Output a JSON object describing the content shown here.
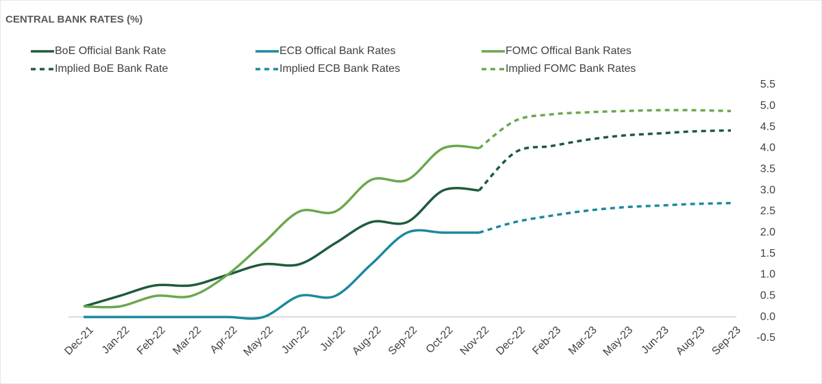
{
  "chart_data": {
    "type": "line",
    "title": "CENTRAL BANK RATES (%)",
    "categories": [
      "Dec-21",
      "Jan-22",
      "Feb-22",
      "Mar-22",
      "Apr-22",
      "May-22",
      "Jun-22",
      "Jul-22",
      "Aug-22",
      "Sep-22",
      "Oct-22",
      "Nov-22",
      "Dec-22",
      "Feb-23",
      "Mar-23",
      "May-23",
      "Jun-23",
      "Aug-23",
      "Sep-23"
    ],
    "series": [
      {
        "name": "BoE Official Bank Rate",
        "color": "#1e5a3c",
        "dashed": false,
        "values": [
          0.25,
          0.5,
          0.75,
          0.75,
          1.0,
          1.25,
          1.25,
          1.75,
          2.25,
          2.25,
          3.0,
          3.0,
          null,
          null,
          null,
          null,
          null,
          null,
          null
        ]
      },
      {
        "name": "ECB Offical Bank Rates",
        "color": "#1a8a9e",
        "dashed": false,
        "values": [
          0,
          0,
          0,
          0,
          0,
          0,
          0.5,
          0.5,
          1.25,
          2.0,
          2.0,
          2.0,
          null,
          null,
          null,
          null,
          null,
          null,
          null
        ]
      },
      {
        "name": "FOMC Offical Bank Rates",
        "color": "#6aa84f",
        "dashed": false,
        "values": [
          0.25,
          0.25,
          0.5,
          0.5,
          1.0,
          1.75,
          2.5,
          2.5,
          3.25,
          3.25,
          4.0,
          4.0,
          null,
          null,
          null,
          null,
          null,
          null,
          null
        ]
      },
      {
        "name": "Implied BoE Bank Rate",
        "color": "#1e5a3c",
        "dashed": true,
        "values": [
          null,
          null,
          null,
          null,
          null,
          null,
          null,
          null,
          null,
          null,
          null,
          3.0,
          3.9,
          4.05,
          4.2,
          4.3,
          4.35,
          4.4,
          4.42
        ]
      },
      {
        "name": "Implied ECB Bank Rates",
        "color": "#1a8a9e",
        "dashed": true,
        "values": [
          null,
          null,
          null,
          null,
          null,
          null,
          null,
          null,
          null,
          null,
          null,
          2.0,
          2.25,
          2.4,
          2.52,
          2.6,
          2.64,
          2.68,
          2.7
        ]
      },
      {
        "name": "Implied FOMC Bank Rates",
        "color": "#6aa84f",
        "dashed": true,
        "values": [
          null,
          null,
          null,
          null,
          null,
          null,
          null,
          null,
          null,
          null,
          null,
          4.0,
          4.65,
          4.8,
          4.85,
          4.88,
          4.9,
          4.9,
          4.88
        ]
      }
    ],
    "ylim": [
      -0.5,
      5.5
    ],
    "yticks": [
      -0.5,
      {
        "value": 0,
        "label": "0.0"
      },
      0.5,
      {
        "value": 1,
        "label": "1.0"
      },
      1.5,
      {
        "value": 2,
        "label": "2.0"
      },
      2.5,
      {
        "value": 3,
        "label": "3.0"
      },
      3.5,
      {
        "value": 4,
        "label": "4.0"
      },
      4.5,
      {
        "value": 5,
        "label": "5.0"
      },
      5.5
    ],
    "grid": false
  }
}
